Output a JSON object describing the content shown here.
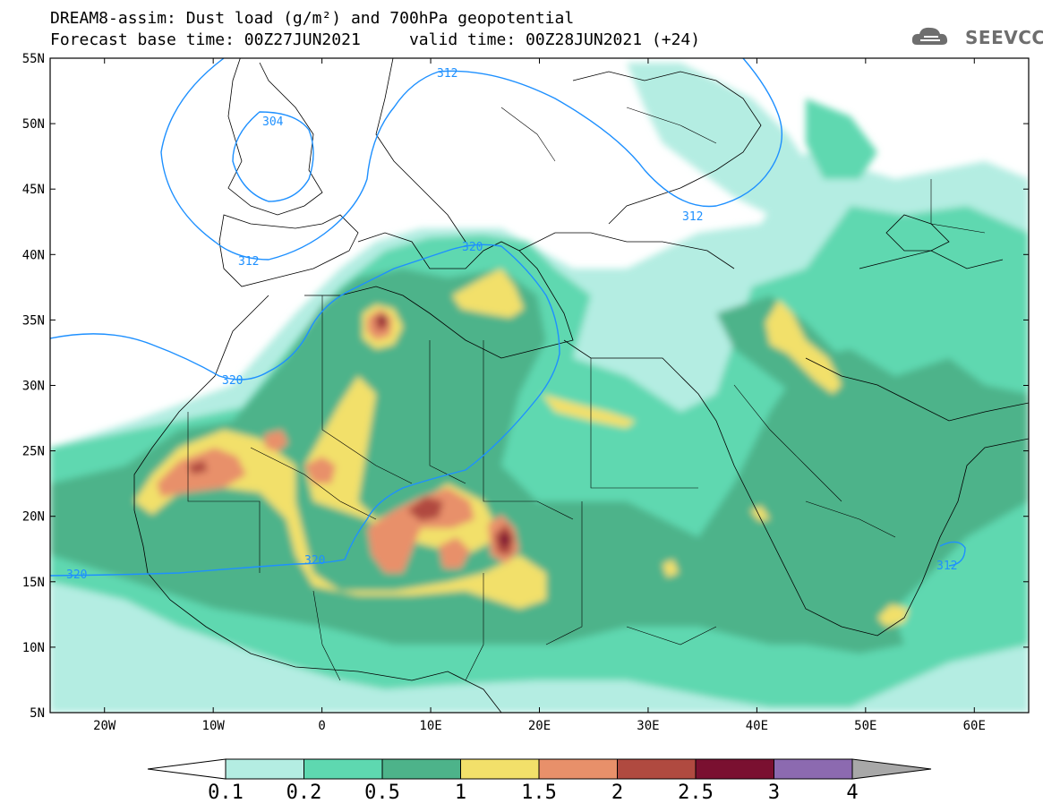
{
  "title": {
    "line1": "DREAM8-assim: Dust load (g/m²) and 700hPa geopotential",
    "line2": "Forecast base time: 00Z27JUN2021     valid time: 00Z28JUN2021 (+24)"
  },
  "logo": {
    "text": "SEEVCCC",
    "icon": "cloud-logo-icon"
  },
  "axes": {
    "lon_labels": [
      "20W",
      "10W",
      "0",
      "10E",
      "20E",
      "30E",
      "40E",
      "50E",
      "60E"
    ],
    "lon_values": [
      -20,
      -10,
      0,
      10,
      20,
      30,
      40,
      50,
      60
    ],
    "lat_labels": [
      "55N",
      "50N",
      "45N",
      "40N",
      "35N",
      "30N",
      "25N",
      "20N",
      "15N",
      "10N",
      "5N"
    ],
    "lat_values": [
      55,
      50,
      45,
      40,
      35,
      30,
      25,
      20,
      15,
      10,
      5
    ],
    "lon_range": [
      -25,
      65
    ],
    "lat_range": [
      5,
      55
    ]
  },
  "colorbar": {
    "labels": [
      "0.1",
      "0.2",
      "0.5",
      "1",
      "1.5",
      "2",
      "2.5",
      "3",
      "4"
    ],
    "colors": [
      "#b4ede2",
      "#5ed8b0",
      "#4db38a",
      "#f2e06a",
      "#e8906a",
      "#b04a40",
      "#7a1030",
      "#8c6ab0"
    ],
    "under_color": "#ffffff",
    "over_color": "#a8a8a8"
  },
  "contours": {
    "color": "#1e90ff",
    "labels": [
      "312",
      "304",
      "312",
      "312",
      "320",
      "320",
      "320",
      "320",
      "312"
    ]
  }
}
